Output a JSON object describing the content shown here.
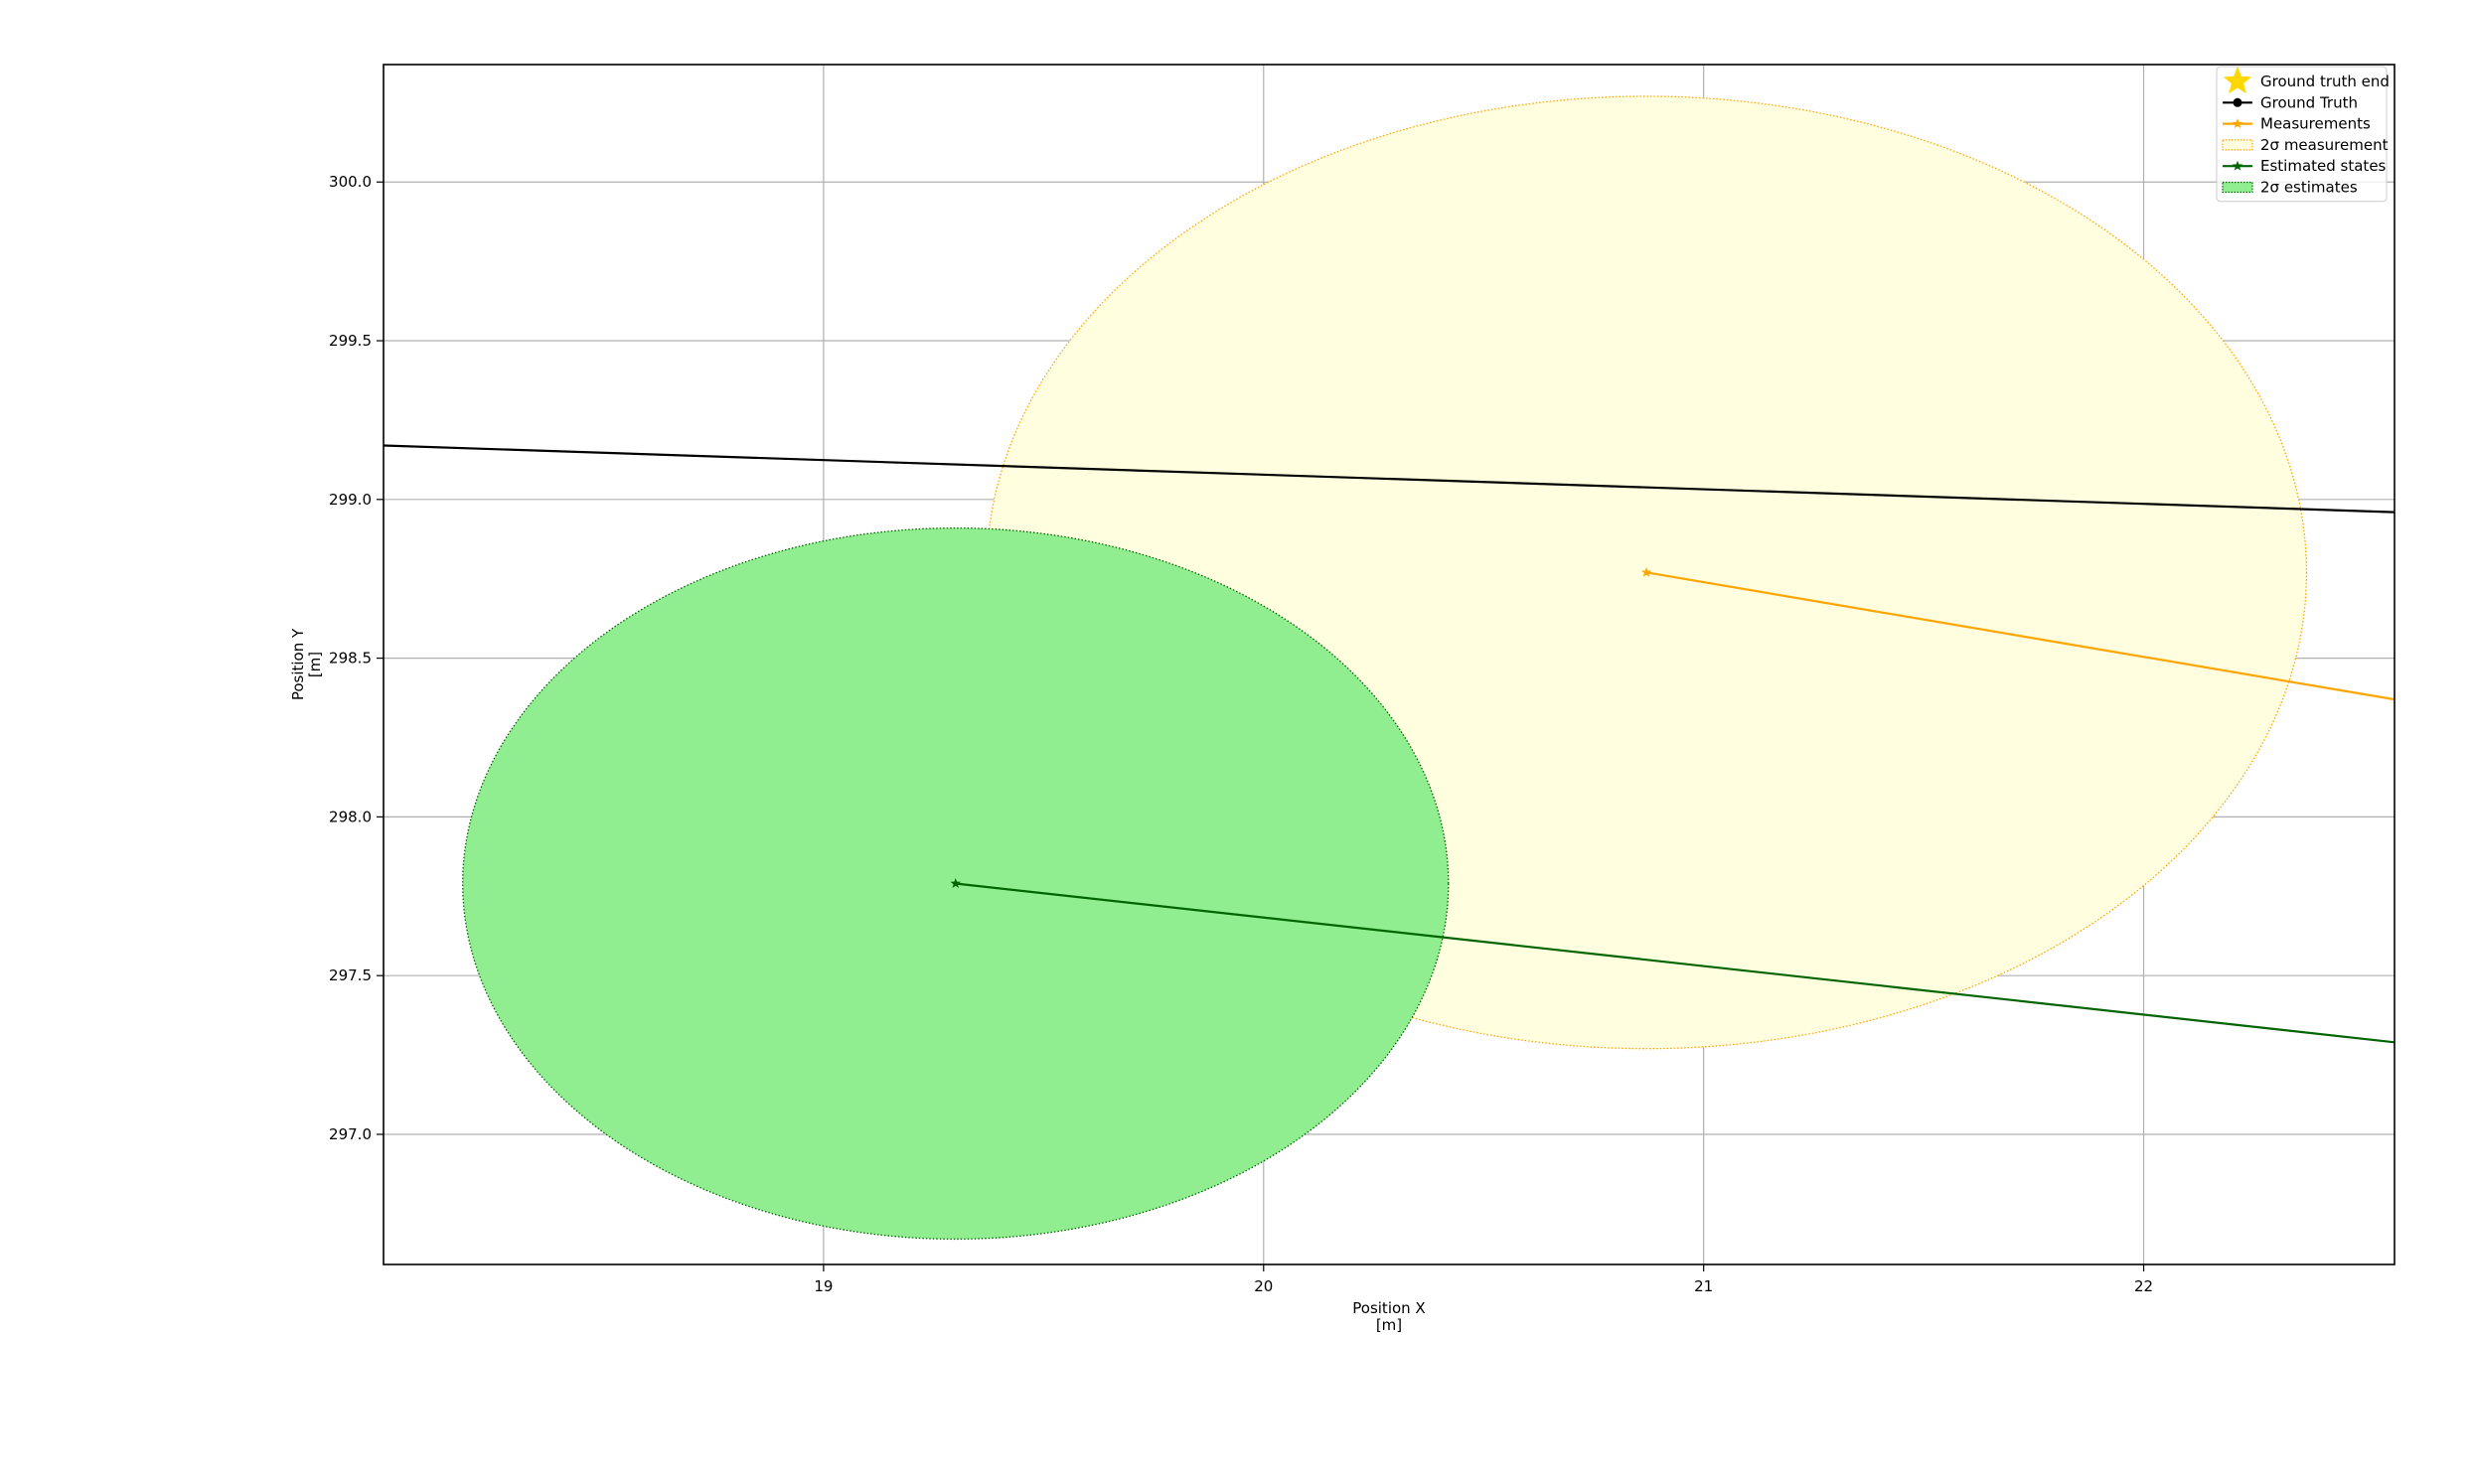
{
  "chart_data": {
    "type": "line",
    "title": "",
    "xlabel": "Position X\n[m]",
    "ylabel": "Position Y\n[m]",
    "xlim": [
      18.0,
      22.57
    ],
    "ylim": [
      296.59,
      300.37
    ],
    "x_ticks": [
      19,
      20,
      21,
      22
    ],
    "y_ticks": [
      297.0,
      297.5,
      298.0,
      298.5,
      299.0,
      299.5,
      300.0
    ],
    "x_tick_labels": [
      "19",
      "20",
      "21",
      "22"
    ],
    "y_tick_labels": [
      "297.0",
      "297.5",
      "298.0",
      "298.5",
      "299.0",
      "299.5",
      "300.0"
    ],
    "grid": true,
    "legend_position": "top-right",
    "legend": [
      {
        "label": "Ground truth end",
        "kind": "star",
        "color": "#ffd700"
      },
      {
        "label": "Ground Truth",
        "kind": "line-dot",
        "color": "#000000"
      },
      {
        "label": "Measurements",
        "kind": "line-star",
        "color": "#ffa500"
      },
      {
        "label": "2σ measurement",
        "kind": "patch-dotted",
        "color": "#ffffe0",
        "edge": "#ffa500"
      },
      {
        "label": "Estimated states",
        "kind": "line-star",
        "color": "#006400"
      },
      {
        "label": "2σ estimates",
        "kind": "patch-dotted",
        "color": "#90ee90",
        "edge": "#006400"
      }
    ],
    "series": [
      {
        "name": "Ground Truth",
        "color": "#000000",
        "x": [
          18.0,
          22.57
        ],
        "y": [
          299.17,
          298.96
        ]
      },
      {
        "name": "Measurements",
        "color": "#ffa500",
        "x": [
          20.87,
          22.57
        ],
        "y": [
          298.77,
          298.37
        ]
      },
      {
        "name": "Estimated states",
        "color": "#006400",
        "x": [
          19.3,
          22.57
        ],
        "y": [
          297.79,
          297.29
        ]
      }
    ],
    "ellipses": [
      {
        "name": "2σ measurement",
        "cx": 20.87,
        "cy": 298.77,
        "rx": 1.5,
        "ry": 1.5,
        "fill": "#ffffe0",
        "edge": "#ffa500"
      },
      {
        "name": "2σ estimates",
        "cx": 19.3,
        "cy": 297.79,
        "rx": 1.12,
        "ry": 1.12,
        "fill": "#90ee90",
        "edge": "#006400"
      }
    ]
  }
}
